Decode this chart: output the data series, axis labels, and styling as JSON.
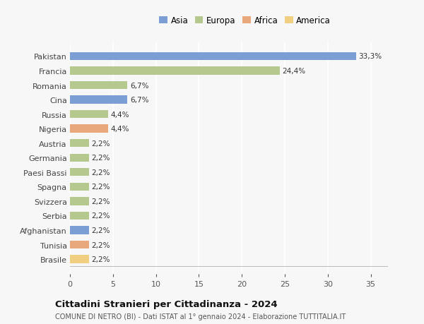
{
  "countries": [
    "Pakistan",
    "Francia",
    "Romania",
    "Cina",
    "Russia",
    "Nigeria",
    "Austria",
    "Germania",
    "Paesi Bassi",
    "Spagna",
    "Svizzera",
    "Serbia",
    "Afghanistan",
    "Tunisia",
    "Brasile"
  ],
  "values": [
    33.3,
    24.4,
    6.7,
    6.7,
    4.4,
    4.4,
    2.2,
    2.2,
    2.2,
    2.2,
    2.2,
    2.2,
    2.2,
    2.2,
    2.2
  ],
  "labels": [
    "33,3%",
    "24,4%",
    "6,7%",
    "6,7%",
    "4,4%",
    "4,4%",
    "2,2%",
    "2,2%",
    "2,2%",
    "2,2%",
    "2,2%",
    "2,2%",
    "2,2%",
    "2,2%",
    "2,2%"
  ],
  "colors": [
    "#7b9fd4",
    "#b5c98e",
    "#b5c98e",
    "#7b9fd4",
    "#b5c98e",
    "#e8a87c",
    "#b5c98e",
    "#b5c98e",
    "#b5c98e",
    "#b5c98e",
    "#b5c98e",
    "#b5c98e",
    "#7b9fd4",
    "#e8a87c",
    "#f0d080"
  ],
  "legend_labels": [
    "Asia",
    "Europa",
    "Africa",
    "America"
  ],
  "legend_colors": [
    "#7b9fd4",
    "#b5c98e",
    "#e8a87c",
    "#f0d080"
  ],
  "title": "Cittadini Stranieri per Cittadinanza - 2024",
  "subtitle": "COMUNE DI NETRO (BI) - Dati ISTAT al 1° gennaio 2024 - Elaborazione TUTTITALIA.IT",
  "xlim": [
    0,
    37
  ],
  "xticks": [
    0,
    5,
    10,
    15,
    20,
    25,
    30,
    35
  ],
  "background_color": "#f7f7f7",
  "grid_color": "#ffffff",
  "bar_height": 0.55
}
